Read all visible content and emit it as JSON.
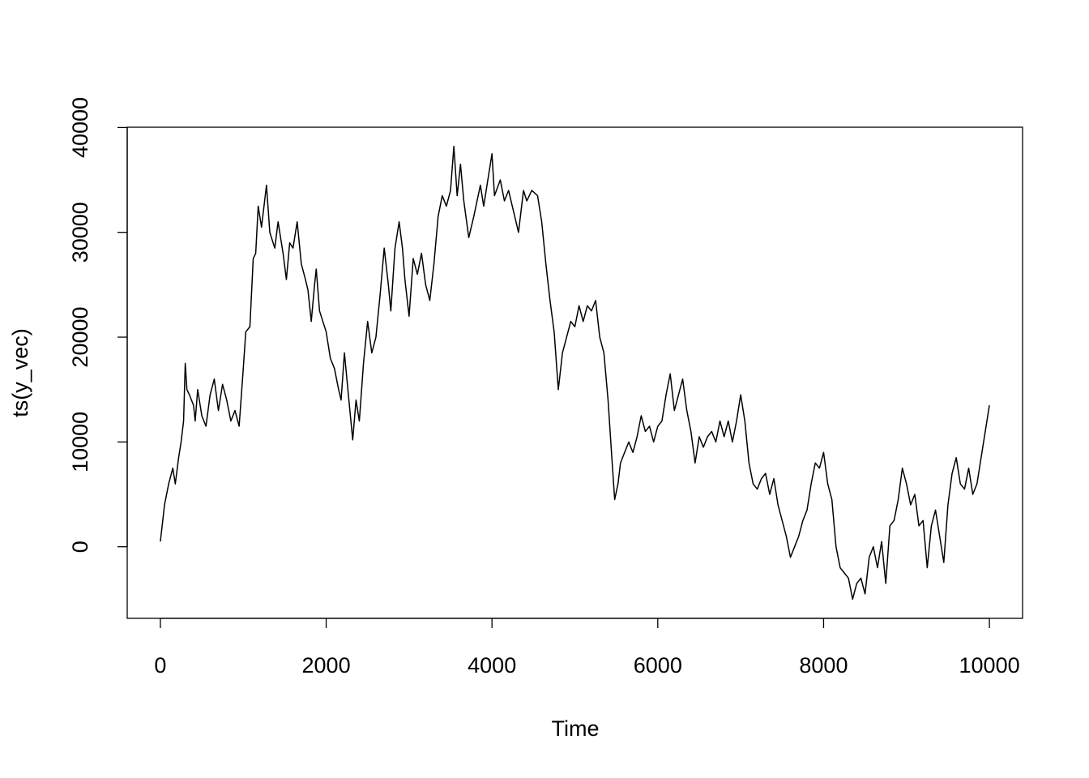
{
  "chart_data": {
    "type": "line",
    "x_label": "Time",
    "y_label": "ts(y_vec)",
    "x": [
      0,
      50,
      100,
      150,
      180,
      220,
      250,
      280,
      300,
      320,
      350,
      400,
      420,
      450,
      500,
      550,
      600,
      650,
      700,
      750,
      800,
      850,
      900,
      950,
      1000,
      1030,
      1080,
      1120,
      1150,
      1180,
      1220,
      1280,
      1320,
      1380,
      1420,
      1480,
      1520,
      1560,
      1600,
      1650,
      1700,
      1750,
      1780,
      1820,
      1860,
      1880,
      1920,
      2000,
      2050,
      2100,
      2150,
      2180,
      2220,
      2280,
      2320,
      2360,
      2400,
      2450,
      2500,
      2550,
      2600,
      2650,
      2700,
      2750,
      2780,
      2830,
      2880,
      2920,
      2950,
      3000,
      3050,
      3100,
      3150,
      3200,
      3250,
      3300,
      3350,
      3400,
      3450,
      3500,
      3540,
      3580,
      3620,
      3660,
      3720,
      3780,
      3820,
      3860,
      3900,
      3950,
      4000,
      4030,
      4100,
      4150,
      4200,
      4260,
      4320,
      4380,
      4420,
      4480,
      4550,
      4600,
      4650,
      4700,
      4750,
      4800,
      4850,
      4900,
      4950,
      5000,
      5050,
      5100,
      5150,
      5200,
      5250,
      5300,
      5350,
      5400,
      5450,
      5480,
      5520,
      5550,
      5600,
      5650,
      5700,
      5750,
      5800,
      5850,
      5900,
      5950,
      6000,
      6050,
      6100,
      6150,
      6200,
      6250,
      6300,
      6350,
      6400,
      6450,
      6500,
      6550,
      6600,
      6650,
      6700,
      6750,
      6800,
      6850,
      6900,
      6950,
      7000,
      7050,
      7100,
      7150,
      7200,
      7250,
      7300,
      7350,
      7400,
      7450,
      7500,
      7550,
      7600,
      7650,
      7700,
      7750,
      7800,
      7850,
      7900,
      7950,
      8000,
      8050,
      8100,
      8150,
      8200,
      8250,
      8300,
      8350,
      8400,
      8450,
      8500,
      8550,
      8600,
      8650,
      8700,
      8750,
      8800,
      8850,
      8900,
      8950,
      9000,
      9050,
      9100,
      9150,
      9200,
      9250,
      9300,
      9350,
      9400,
      9450,
      9500,
      9550,
      9600,
      9650,
      9700,
      9750,
      9800,
      9850,
      9900,
      9950,
      10000
    ],
    "values": [
      500,
      4000,
      6000,
      7500,
      6000,
      8500,
      10000,
      12000,
      17500,
      15000,
      14500,
      13500,
      12000,
      15000,
      12500,
      11500,
      14500,
      16000,
      13000,
      15500,
      14000,
      12000,
      13000,
      11500,
      17000,
      20500,
      21000,
      27500,
      28000,
      32500,
      30500,
      34500,
      30000,
      28500,
      31000,
      28000,
      25500,
      29000,
      28500,
      31000,
      27000,
      25500,
      24500,
      21500,
      25000,
      26500,
      22500,
      20500,
      18000,
      17000,
      15000,
      14000,
      18500,
      13500,
      10200,
      14000,
      12000,
      17500,
      21500,
      18500,
      20000,
      24000,
      28500,
      25000,
      22500,
      28500,
      31000,
      28500,
      25500,
      22000,
      27500,
      26000,
      28000,
      25000,
      23500,
      27000,
      31500,
      33500,
      32500,
      34000,
      38200,
      33500,
      36500,
      33000,
      29500,
      31500,
      33000,
      34500,
      32500,
      35000,
      37500,
      33500,
      35000,
      33000,
      34000,
      32000,
      30000,
      34000,
      33000,
      34000,
      33500,
      31000,
      27000,
      23500,
      20500,
      15000,
      18500,
      20000,
      21500,
      21000,
      23000,
      21500,
      23000,
      22500,
      23500,
      20000,
      18500,
      14000,
      8000,
      4500,
      6000,
      8000,
      9000,
      10000,
      9000,
      10500,
      12500,
      11000,
      11500,
      10000,
      11500,
      12000,
      14500,
      16500,
      13000,
      14500,
      16000,
      13000,
      11000,
      8000,
      10500,
      9500,
      10500,
      11000,
      10000,
      12000,
      10500,
      12000,
      10000,
      12000,
      14500,
      12000,
      8000,
      6000,
      5500,
      6500,
      7000,
      5000,
      6500,
      4000,
      2500,
      1000,
      -1000,
      0,
      1000,
      2500,
      3500,
      6000,
      8000,
      7500,
      9000,
      6000,
      4500,
      0,
      -2000,
      -2500,
      -3000,
      -5000,
      -3500,
      -3000,
      -4500,
      -1000,
      0,
      -2000,
      500,
      -3500,
      2000,
      2500,
      4500,
      7500,
      6000,
      4000,
      5000,
      2000,
      2500,
      -2000,
      2000,
      3500,
      1000,
      -1500,
      4000,
      7000,
      8500,
      6000,
      5500,
      7500,
      5000,
      6000,
      8500,
      11000,
      13500
    ],
    "color": "#000000",
    "xlim": [
      -400,
      10400
    ],
    "ylim": [
      -6830,
      40030
    ],
    "xticks": [
      0,
      2000,
      4000,
      6000,
      8000,
      10000
    ],
    "yticks": [
      0,
      10000,
      20000,
      30000,
      40000
    ],
    "grid": false
  }
}
